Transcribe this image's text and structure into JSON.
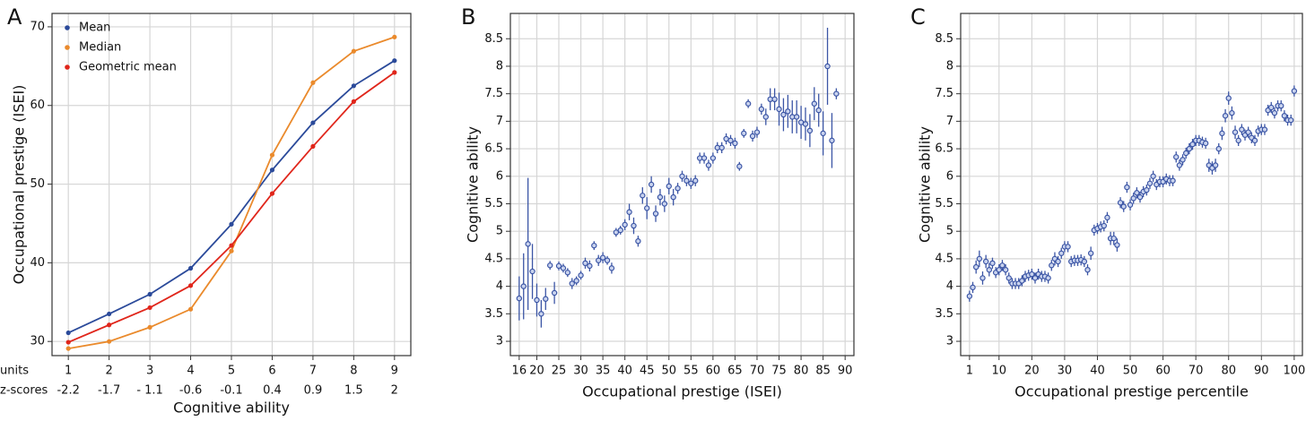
{
  "chart_data": [
    {
      "type": "line",
      "panel": "A",
      "x_label": "Cognitive ability",
      "y_label": "Occupational prestige (ISEI)",
      "x_row_label": "units",
      "z_row_label": "z-scores",
      "x": [
        1,
        2,
        3,
        4,
        5,
        6,
        7,
        8,
        9
      ],
      "z_scores": [
        "-2.2",
        "-1.7",
        "- 1.1",
        "-0.6",
        "-0.1",
        "0.4",
        "0.9",
        "1.5",
        "2"
      ],
      "xlim": [
        0.6,
        9.4
      ],
      "xticks": [
        1,
        2,
        3,
        4,
        5,
        6,
        7,
        8,
        9
      ],
      "ylim": [
        28.2,
        71.7
      ],
      "yticks": [
        30,
        40,
        50,
        60,
        70
      ],
      "grid": true,
      "legend": "upper left",
      "series": [
        {
          "name": "Mean",
          "color": "#2b4a9a",
          "values": [
            31.1,
            33.5,
            36.0,
            39.3,
            44.9,
            51.8,
            57.8,
            62.5,
            65.7
          ]
        },
        {
          "name": "Median",
          "color": "#ea8a2c",
          "values": [
            29.1,
            30.0,
            31.8,
            34.1,
            41.5,
            53.7,
            62.9,
            66.9,
            68.7
          ]
        },
        {
          "name": "Geometric mean",
          "color": "#e0261b",
          "values": [
            29.9,
            32.1,
            34.3,
            37.1,
            42.2,
            48.8,
            54.8,
            60.5,
            64.2
          ]
        }
      ]
    },
    {
      "type": "scatter",
      "panel": "B",
      "x_label": "Occupational prestige (ISEI)",
      "y_label": "Cognitive ability",
      "color": "#3b55a5",
      "xlim": [
        14,
        92
      ],
      "xticks": [
        16,
        20,
        25,
        30,
        35,
        40,
        45,
        50,
        55,
        60,
        65,
        70,
        75,
        80,
        85,
        90
      ],
      "ylim": [
        2.74,
        8.96
      ],
      "yticks": [
        3,
        3.5,
        4,
        4.5,
        5,
        5.5,
        6,
        6.5,
        7,
        7.5,
        8,
        8.5
      ],
      "grid": true,
      "x": [
        16,
        17,
        18,
        19,
        20,
        21,
        22,
        23,
        24,
        25,
        26,
        27,
        28,
        29,
        30,
        31,
        32,
        33,
        34,
        35,
        36,
        37,
        38,
        39,
        40,
        41,
        42,
        43,
        44,
        45,
        46,
        47,
        48,
        49,
        50,
        51,
        52,
        53,
        54,
        55,
        56,
        57,
        58,
        59,
        60,
        61,
        62,
        63,
        64,
        65,
        66,
        67,
        68,
        69,
        70,
        71,
        72,
        73,
        74,
        75,
        76,
        77,
        78,
        79,
        80,
        81,
        82,
        83,
        84,
        85,
        86,
        87,
        88
      ],
      "values": [
        3.78,
        4.0,
        4.77,
        4.27,
        3.75,
        3.5,
        3.77,
        4.38,
        3.88,
        4.37,
        4.33,
        4.25,
        4.05,
        4.1,
        4.2,
        4.42,
        4.37,
        4.74,
        4.47,
        4.52,
        4.47,
        4.33,
        4.98,
        5.02,
        5.12,
        5.35,
        5.1,
        4.82,
        5.65,
        5.42,
        5.85,
        5.32,
        5.62,
        5.5,
        5.82,
        5.62,
        5.78,
        6.0,
        5.92,
        5.87,
        5.92,
        6.33,
        6.33,
        6.2,
        6.33,
        6.52,
        6.52,
        6.68,
        6.65,
        6.6,
        6.18,
        6.78,
        7.32,
        6.73,
        6.8,
        7.22,
        7.08,
        7.4,
        7.4,
        7.22,
        7.12,
        7.18,
        7.08,
        7.08,
        6.98,
        6.95,
        6.83,
        7.32,
        7.2,
        6.78,
        8.0,
        6.65,
        7.5
      ],
      "errors": [
        0.4,
        0.6,
        1.2,
        0.5,
        0.3,
        0.25,
        0.2,
        0.08,
        0.2,
        0.08,
        0.08,
        0.08,
        0.1,
        0.08,
        0.08,
        0.1,
        0.1,
        0.08,
        0.1,
        0.1,
        0.08,
        0.1,
        0.08,
        0.08,
        0.1,
        0.15,
        0.15,
        0.1,
        0.15,
        0.2,
        0.15,
        0.15,
        0.15,
        0.15,
        0.15,
        0.15,
        0.1,
        0.1,
        0.1,
        0.1,
        0.1,
        0.1,
        0.1,
        0.1,
        0.1,
        0.1,
        0.1,
        0.1,
        0.1,
        0.1,
        0.08,
        0.08,
        0.08,
        0.1,
        0.1,
        0.1,
        0.15,
        0.2,
        0.2,
        0.3,
        0.3,
        0.3,
        0.3,
        0.3,
        0.3,
        0.3,
        0.3,
        0.3,
        0.3,
        0.4,
        0.7,
        0.5,
        0.1
      ]
    },
    {
      "type": "scatter",
      "panel": "C",
      "x_label": "Occupational prestige percentile",
      "y_label": "Cognitive ability",
      "color": "#3b55a5",
      "xlim": [
        -1.7,
        102.5
      ],
      "xticks": [
        1,
        10,
        20,
        30,
        40,
        50,
        60,
        70,
        80,
        90,
        100
      ],
      "ylim": [
        2.74,
        8.96
      ],
      "yticks": [
        3,
        3.5,
        4,
        4.5,
        5,
        5.5,
        6,
        6.5,
        7,
        7.5,
        8,
        8.5
      ],
      "grid": true,
      "x": [
        1,
        2,
        3,
        4,
        5,
        6,
        7,
        8,
        9,
        10,
        11,
        12,
        13,
        14,
        15,
        16,
        17,
        18,
        19,
        20,
        21,
        22,
        23,
        24,
        25,
        26,
        27,
        28,
        29,
        30,
        31,
        32,
        33,
        34,
        35,
        36,
        37,
        38,
        39,
        40,
        41,
        42,
        43,
        44,
        45,
        46,
        47,
        48,
        49,
        50,
        51,
        52,
        53,
        54,
        55,
        56,
        57,
        58,
        59,
        60,
        61,
        62,
        63,
        64,
        65,
        66,
        67,
        68,
        69,
        70,
        71,
        72,
        73,
        74,
        75,
        76,
        77,
        78,
        79,
        80,
        81,
        82,
        83,
        84,
        85,
        86,
        87,
        88,
        89,
        90,
        91,
        92,
        93,
        94,
        95,
        96,
        97,
        98,
        99,
        100
      ],
      "values": [
        3.82,
        3.98,
        4.35,
        4.5,
        4.15,
        4.45,
        4.3,
        4.42,
        4.25,
        4.3,
        4.38,
        4.3,
        4.15,
        4.05,
        4.05,
        4.05,
        4.1,
        4.18,
        4.2,
        4.22,
        4.15,
        4.22,
        4.18,
        4.18,
        4.15,
        4.38,
        4.5,
        4.45,
        4.6,
        4.72,
        4.72,
        4.45,
        4.47,
        4.47,
        4.48,
        4.45,
        4.3,
        4.6,
        5.02,
        5.05,
        5.08,
        5.1,
        5.25,
        4.87,
        4.87,
        4.75,
        5.52,
        5.45,
        5.8,
        5.48,
        5.6,
        5.7,
        5.62,
        5.72,
        5.75,
        5.87,
        6.0,
        5.85,
        5.9,
        5.9,
        5.95,
        5.92,
        5.92,
        6.35,
        6.2,
        6.3,
        6.42,
        6.5,
        6.58,
        6.65,
        6.65,
        6.62,
        6.6,
        6.2,
        6.15,
        6.2,
        6.5,
        6.78,
        7.1,
        7.42,
        7.15,
        6.8,
        6.65,
        6.85,
        6.75,
        6.8,
        6.7,
        6.65,
        6.82,
        6.85,
        6.85,
        7.2,
        7.25,
        7.15,
        7.28,
        7.28,
        7.1,
        7.02,
        7.02,
        7.55
      ],
      "errors": [
        0.1,
        0.1,
        0.12,
        0.15,
        0.12,
        0.12,
        0.12,
        0.1,
        0.1,
        0.1,
        0.1,
        0.1,
        0.1,
        0.1,
        0.1,
        0.1,
        0.1,
        0.1,
        0.1,
        0.1,
        0.1,
        0.1,
        0.1,
        0.1,
        0.1,
        0.1,
        0.12,
        0.1,
        0.1,
        0.1,
        0.1,
        0.1,
        0.1,
        0.1,
        0.1,
        0.1,
        0.1,
        0.12,
        0.1,
        0.1,
        0.1,
        0.1,
        0.1,
        0.12,
        0.12,
        0.12,
        0.1,
        0.1,
        0.1,
        0.1,
        0.1,
        0.1,
        0.1,
        0.1,
        0.1,
        0.1,
        0.1,
        0.1,
        0.1,
        0.1,
        0.1,
        0.1,
        0.1,
        0.1,
        0.1,
        0.1,
        0.1,
        0.1,
        0.1,
        0.1,
        0.1,
        0.1,
        0.1,
        0.12,
        0.12,
        0.12,
        0.1,
        0.12,
        0.12,
        0.12,
        0.12,
        0.12,
        0.1,
        0.1,
        0.1,
        0.1,
        0.1,
        0.1,
        0.1,
        0.1,
        0.1,
        0.1,
        0.1,
        0.1,
        0.1,
        0.1,
        0.1,
        0.1,
        0.1,
        0.1
      ]
    }
  ]
}
